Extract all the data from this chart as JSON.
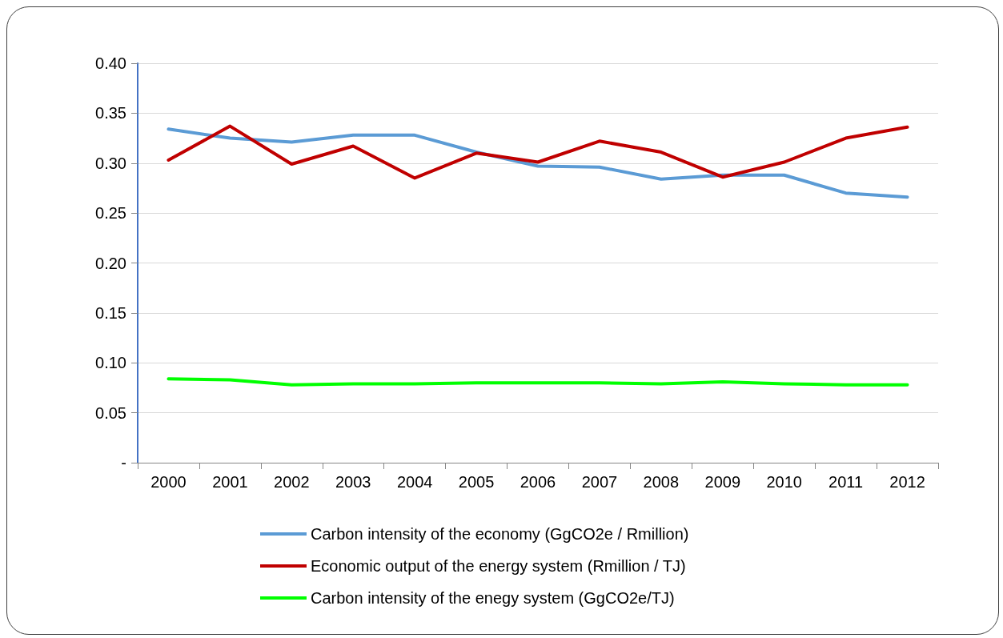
{
  "chart_data": {
    "type": "line",
    "categories": [
      "2000",
      "2001",
      "2002",
      "2003",
      "2004",
      "2005",
      "2006",
      "2007",
      "2008",
      "2009",
      "2010",
      "2011",
      "2012"
    ],
    "series": [
      {
        "name": "Carbon intensity of the economy (GgCO2e / Rmillion)",
        "color": "#5b9bd5",
        "values": [
          0.334,
          0.325,
          0.321,
          0.328,
          0.328,
          0.311,
          0.297,
          0.296,
          0.284,
          0.288,
          0.288,
          0.27,
          0.266
        ]
      },
      {
        "name": "Economic output of the energy system (Rmillion / TJ)",
        "color": "#c00000",
        "values": [
          0.303,
          0.337,
          0.299,
          0.317,
          0.285,
          0.31,
          0.301,
          0.322,
          0.311,
          0.286,
          0.301,
          0.325,
          0.336
        ]
      },
      {
        "name": "Carbon intensity of the enegy system (GgCO2e/TJ)",
        "color": "#00ff00",
        "values": [
          0.084,
          0.083,
          0.078,
          0.079,
          0.079,
          0.08,
          0.08,
          0.08,
          0.079,
          0.081,
          0.079,
          0.078,
          0.078
        ]
      }
    ],
    "ylim": [
      0,
      0.4
    ],
    "yticks": [
      {
        "value": 0,
        "label": "-"
      },
      {
        "value": 0.05,
        "label": "0.05"
      },
      {
        "value": 0.1,
        "label": "0.10"
      },
      {
        "value": 0.15,
        "label": "0.15"
      },
      {
        "value": 0.2,
        "label": "0.20"
      },
      {
        "value": 0.25,
        "label": "0.25"
      },
      {
        "value": 0.3,
        "label": "0.30"
      },
      {
        "value": 0.35,
        "label": "0.35"
      },
      {
        "value": 0.4,
        "label": "0.40"
      }
    ],
    "grid": "y",
    "legend": "bottom",
    "marker": "none",
    "line_style": "solid"
  }
}
